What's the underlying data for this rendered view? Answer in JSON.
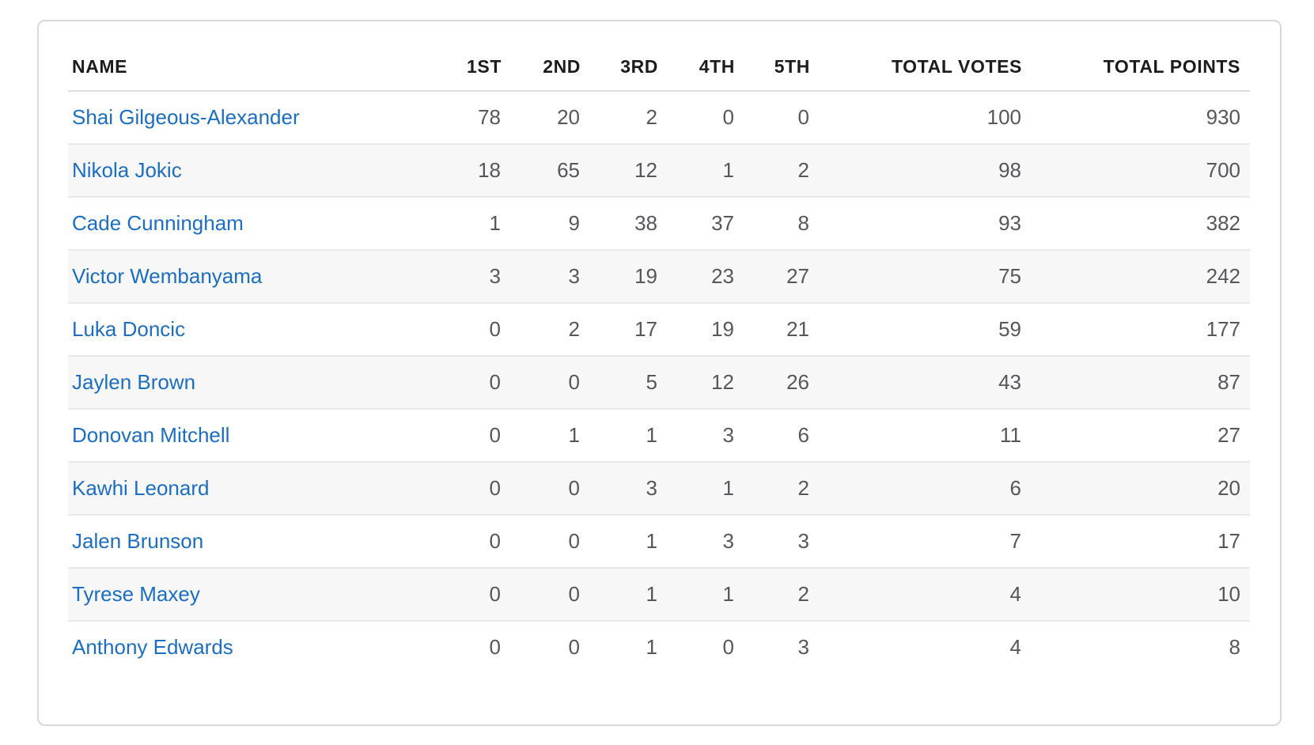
{
  "table": {
    "columns": [
      {
        "id": "name",
        "label": "NAME"
      },
      {
        "id": "1st",
        "label": "1ST"
      },
      {
        "id": "2nd",
        "label": "2ND"
      },
      {
        "id": "3rd",
        "label": "3RD"
      },
      {
        "id": "4th",
        "label": "4TH"
      },
      {
        "id": "5th",
        "label": "5TH"
      },
      {
        "id": "total-votes",
        "label": "TOTAL VOTES"
      },
      {
        "id": "total-points",
        "label": "TOTAL POINTS"
      }
    ],
    "rows": [
      {
        "name": "Shai Gilgeous-Alexander",
        "values": [
          78,
          20,
          2,
          0,
          0,
          100,
          930
        ]
      },
      {
        "name": "Nikola Jokic",
        "values": [
          18,
          65,
          12,
          1,
          2,
          98,
          700
        ]
      },
      {
        "name": "Cade Cunningham",
        "values": [
          1,
          9,
          38,
          37,
          8,
          93,
          382
        ]
      },
      {
        "name": "Victor Wembanyama",
        "values": [
          3,
          3,
          19,
          23,
          27,
          75,
          242
        ]
      },
      {
        "name": "Luka Doncic",
        "values": [
          0,
          2,
          17,
          19,
          21,
          59,
          177
        ]
      },
      {
        "name": "Jaylen Brown",
        "values": [
          0,
          0,
          5,
          12,
          26,
          43,
          87
        ]
      },
      {
        "name": "Donovan Mitchell",
        "values": [
          0,
          1,
          1,
          3,
          6,
          11,
          27
        ]
      },
      {
        "name": "Kawhi Leonard",
        "values": [
          0,
          0,
          3,
          1,
          2,
          6,
          20
        ]
      },
      {
        "name": "Jalen Brunson",
        "values": [
          0,
          0,
          1,
          3,
          3,
          7,
          17
        ]
      },
      {
        "name": "Tyrese Maxey",
        "values": [
          0,
          0,
          1,
          1,
          2,
          4,
          10
        ]
      },
      {
        "name": "Anthony Edwards",
        "values": [
          0,
          0,
          1,
          0,
          3,
          4,
          8
        ]
      }
    ]
  },
  "colors": {
    "link_blue": "#1b6ec3",
    "header_text": "#1c1c1e",
    "cell_text": "#56575a",
    "row_stripe": "#f7f7f8",
    "row_border": "#e9e9e9",
    "header_border": "#dcdcdc",
    "card_border": "#d8d8d8",
    "card_background": "#ffffff"
  }
}
